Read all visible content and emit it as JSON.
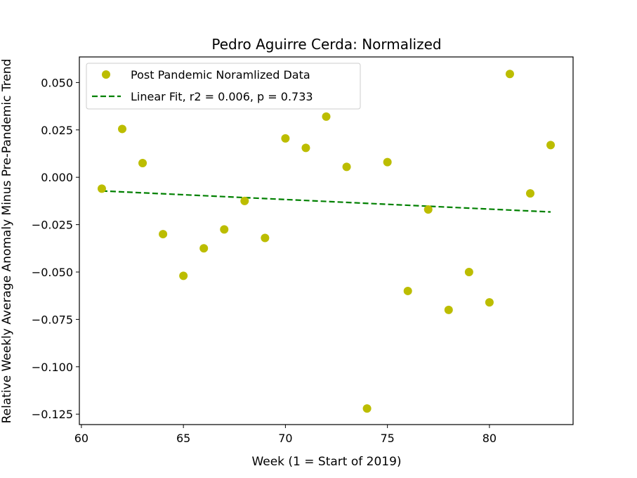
{
  "chart_data": {
    "type": "scatter",
    "title": "Pedro Aguirre Cerda: Normalized",
    "xlabel": "Week (1 = Start of 2019)",
    "ylabel": "Relative Weekly Average Anomaly Minus Pre-Pandemic Trend",
    "xlim": [
      59.9,
      84.1
    ],
    "ylim": [
      -0.1305,
      0.0635
    ],
    "xticks": [
      60,
      65,
      70,
      75,
      80
    ],
    "xtick_labels": [
      "60",
      "65",
      "70",
      "75",
      "80"
    ],
    "yticks": [
      0.05,
      0.025,
      0.0,
      -0.025,
      -0.05,
      -0.075,
      -0.1,
      -0.125
    ],
    "ytick_labels": [
      "0.050",
      "0.025",
      "0.000",
      "−0.025",
      "−0.050",
      "−0.075",
      "−0.100",
      "−0.125"
    ],
    "grid": false,
    "legend_position": "top-left",
    "series": [
      {
        "name": "Post Pandemic Noramlized Data",
        "kind": "scatter",
        "color": "#bcbd00",
        "x": [
          61,
          62,
          63,
          64,
          65,
          66,
          67,
          68,
          69,
          70,
          71,
          72,
          73,
          74,
          75,
          76,
          77,
          78,
          79,
          80,
          81,
          82,
          83
        ],
        "y": [
          -0.006,
          0.0255,
          0.0075,
          -0.03,
          -0.052,
          -0.0375,
          -0.0275,
          -0.0125,
          -0.032,
          0.0205,
          0.0155,
          0.032,
          0.0055,
          -0.122,
          0.008,
          -0.06,
          -0.017,
          -0.07,
          -0.05,
          -0.066,
          0.0545,
          -0.0085,
          0.017
        ]
      },
      {
        "name": "Linear Fit, r2 = 0.006, p = 0.733",
        "kind": "line",
        "style": "dashed",
        "color": "#008000",
        "x": [
          61,
          83
        ],
        "y": [
          -0.0072,
          -0.0183
        ]
      }
    ]
  }
}
